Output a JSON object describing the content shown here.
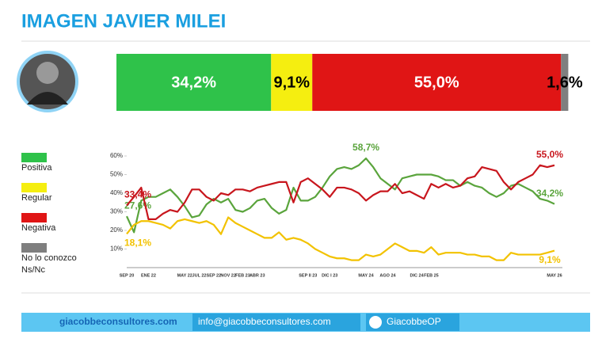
{
  "chart_data": [
    {
      "type": "stacked_bar",
      "title": "IMAGEN JAVIER MILEI",
      "categories": [
        "Positiva",
        "Regular",
        "Negativa",
        "No lo conozco\nNs/Nc"
      ],
      "values": [
        34.2,
        9.1,
        55.0,
        1.6
      ],
      "value_labels": [
        "34,2%",
        "9,1%",
        "55,0%",
        "1,6%"
      ],
      "colors": [
        "#2fc24a",
        "#f5ee10",
        "#e01515",
        "#7f7f7f"
      ],
      "xlim": [
        0,
        100
      ]
    },
    {
      "type": "line",
      "categories": [
        "SEP 20",
        null,
        null,
        "ENE 22",
        null,
        null,
        null,
        null,
        "MAY 22",
        null,
        "JUL 22",
        null,
        "SEP 22",
        null,
        "NOV 22",
        null,
        "FEB 23",
        null,
        "ABR 23",
        null,
        null,
        null,
        null,
        null,
        null,
        "SEP II 23",
        null,
        null,
        "DIC I 23",
        null,
        null,
        null,
        null,
        "MAY 24",
        null,
        null,
        "AGO 24",
        null,
        null,
        null,
        "DIC 24",
        null,
        "FEB 25",
        null,
        null,
        null,
        null,
        null,
        null,
        null,
        null,
        null,
        null,
        null,
        null,
        null,
        null,
        null,
        null,
        "MAY 26"
      ],
      "series": [
        {
          "color": "#5aa43c",
          "values": [
            27.6,
            19,
            36,
            38,
            38,
            40,
            42,
            38,
            33,
            27,
            28,
            34,
            37,
            35,
            37,
            31,
            30,
            32,
            36,
            37,
            32,
            29,
            31,
            43,
            36,
            36,
            38,
            43,
            49,
            53,
            54,
            53,
            55,
            58.7,
            54,
            48,
            45,
            42,
            48,
            49,
            50,
            50,
            50,
            49,
            47,
            47,
            44,
            46,
            44,
            43,
            40,
            38,
            40,
            44,
            45,
            43,
            41,
            37,
            36,
            34.2
          ],
          "value_labels": [
            "27,6%",
            null,
            null,
            null,
            null,
            null,
            null,
            null,
            null,
            null,
            null,
            null,
            null,
            null,
            null,
            null,
            null,
            null,
            null,
            null,
            null,
            null,
            null,
            null,
            null,
            null,
            null,
            null,
            null,
            null,
            null,
            null,
            null,
            "58,7%",
            null,
            null,
            null,
            null,
            null,
            null,
            null,
            null,
            null,
            null,
            null,
            null,
            null,
            null,
            null,
            null,
            null,
            null,
            null,
            null,
            null,
            null,
            null,
            null,
            null,
            "34,2%"
          ]
        },
        {
          "color": "#f2c200",
          "values": [
            18.1,
            23,
            25,
            25,
            24,
            23,
            21,
            25,
            26,
            25,
            24,
            25,
            23,
            18,
            27,
            24,
            22,
            20,
            18,
            16,
            16,
            19,
            15,
            16,
            15,
            13,
            10,
            8,
            6,
            5,
            5,
            4,
            4,
            7,
            6,
            7,
            10,
            13,
            11,
            9,
            9,
            8,
            11,
            7,
            8,
            8,
            8,
            7,
            7,
            6,
            6,
            4,
            4,
            8,
            7,
            7,
            7,
            7,
            8,
            9.1
          ],
          "value_labels": [
            "18,1%",
            null,
            null,
            null,
            null,
            null,
            null,
            null,
            null,
            null,
            null,
            null,
            null,
            null,
            null,
            null,
            null,
            null,
            null,
            null,
            null,
            null,
            null,
            null,
            null,
            null,
            null,
            null,
            null,
            null,
            null,
            null,
            null,
            null,
            null,
            null,
            null,
            null,
            null,
            null,
            null,
            null,
            null,
            null,
            null,
            null,
            null,
            null,
            null,
            null,
            null,
            null,
            null,
            null,
            null,
            null,
            null,
            null,
            null,
            "9,1%"
          ]
        },
        {
          "color": "#c8161d",
          "values": [
            33.4,
            38,
            43,
            26,
            26,
            29,
            31,
            30,
            35,
            42,
            42,
            38,
            36,
            40,
            39,
            42,
            42,
            41,
            43,
            44,
            45,
            46,
            46,
            35,
            46,
            48,
            45,
            42,
            38,
            43,
            43,
            42,
            40,
            36,
            39,
            41,
            41,
            45,
            40,
            41,
            39,
            37,
            45,
            43,
            45,
            43,
            44,
            48,
            49,
            54,
            53,
            52,
            46,
            42,
            46,
            48,
            50,
            55,
            54,
            55.0
          ],
          "value_labels": [
            "33,4%",
            null,
            null,
            null,
            null,
            null,
            null,
            null,
            null,
            null,
            null,
            null,
            null,
            null,
            null,
            null,
            null,
            null,
            null,
            null,
            null,
            null,
            null,
            null,
            null,
            null,
            null,
            null,
            null,
            null,
            null,
            null,
            null,
            null,
            null,
            null,
            null,
            null,
            null,
            null,
            null,
            null,
            null,
            null,
            null,
            null,
            null,
            null,
            null,
            null,
            null,
            null,
            null,
            null,
            null,
            null,
            null,
            null,
            null,
            "55,0%"
          ]
        }
      ],
      "ylim": [
        0,
        60
      ],
      "yticks": [
        {
          "value": 10,
          "label": "10%"
        },
        {
          "value": 20,
          "label": "20%"
        },
        {
          "value": 30,
          "label": "30%"
        },
        {
          "value": 40,
          "label": "40%"
        },
        {
          "value": 50,
          "label": "50%"
        },
        {
          "value": 60,
          "label": "60%"
        }
      ],
      "grid": false
    }
  ],
  "footer": {
    "web": "giacobbeconsultores.com",
    "email": "info@giacobbeconsultores.com",
    "social": "GiacobbeOP"
  }
}
